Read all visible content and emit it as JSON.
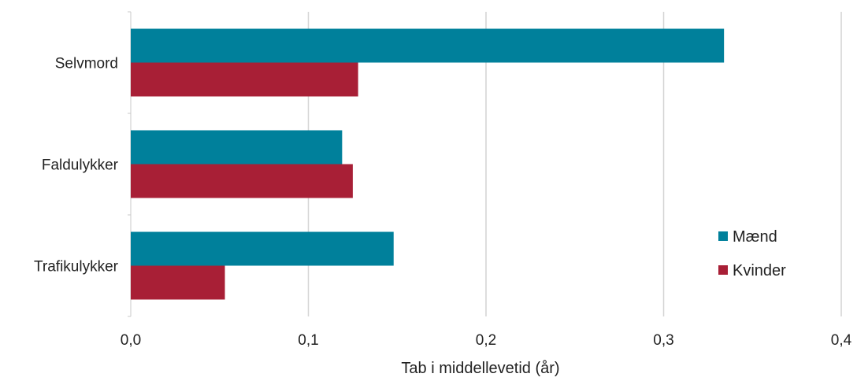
{
  "chart_data": {
    "type": "bar",
    "orientation": "horizontal",
    "categories": [
      "Selvmord",
      "Faldulykker",
      "Trafikulykker"
    ],
    "series": [
      {
        "name": "Mænd",
        "color": "#00809b",
        "values": [
          0.334,
          0.119,
          0.148
        ]
      },
      {
        "name": "Kvinder",
        "color": "#a81f36",
        "values": [
          0.128,
          0.125,
          0.053
        ]
      }
    ],
    "xlabel": "Tab i middellevetid (år)",
    "ylabel": "",
    "xlim": [
      0,
      0.4
    ],
    "xticks": [
      "0,0",
      "0,1",
      "0,2",
      "0,3",
      "0,4"
    ],
    "grid": "vertical",
    "legend_position": "right"
  }
}
